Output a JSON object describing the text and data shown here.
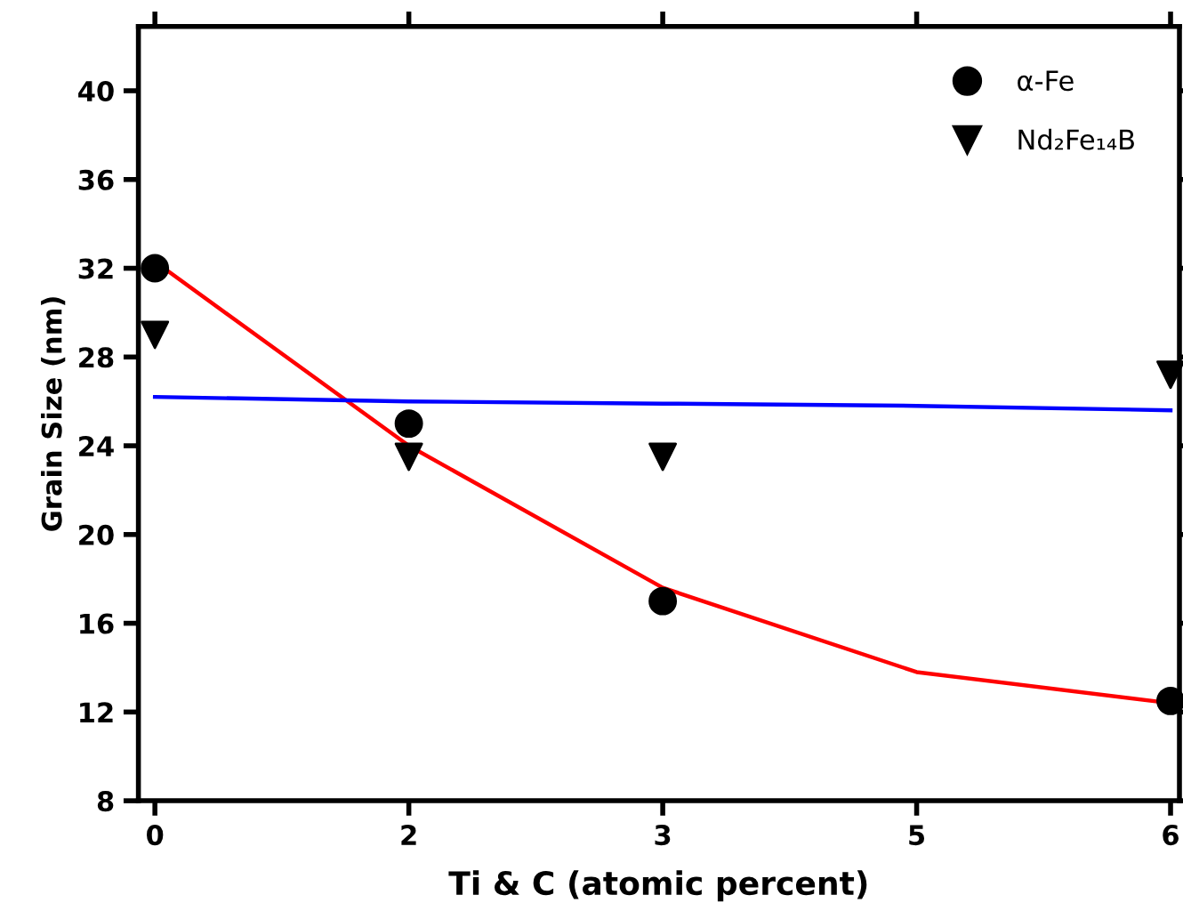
{
  "chart_data": {
    "type": "scatter",
    "xlabel": "Ti & C (atomic percent)",
    "ylabel": "Grain Size (nm)",
    "categories": [
      "0",
      "2",
      "3",
      "5",
      "6"
    ],
    "series": [
      {
        "name": "α-Fe",
        "marker": "circle",
        "color": "#000000",
        "values": [
          32,
          25,
          17,
          null,
          12.5
        ]
      },
      {
        "name": "Nd₂Fe₁₄B",
        "marker": "triangle",
        "color": "#000000",
        "values": [
          29,
          23.5,
          23.5,
          null,
          27.2
        ]
      },
      {
        "type": "line",
        "marker": "none",
        "color": "#ff0000",
        "values": [
          32.3,
          24,
          17.6,
          13.8,
          12.4
        ]
      },
      {
        "type": "line",
        "marker": "none",
        "color": "#0000ff",
        "values": [
          26.2,
          26,
          25.9,
          25.8,
          25.6
        ]
      }
    ],
    "ylim": [
      8,
      42.9
    ],
    "yticks": [
      8,
      12,
      16,
      20,
      24,
      28,
      32,
      36,
      40
    ],
    "grid": false,
    "legend": "top right"
  }
}
